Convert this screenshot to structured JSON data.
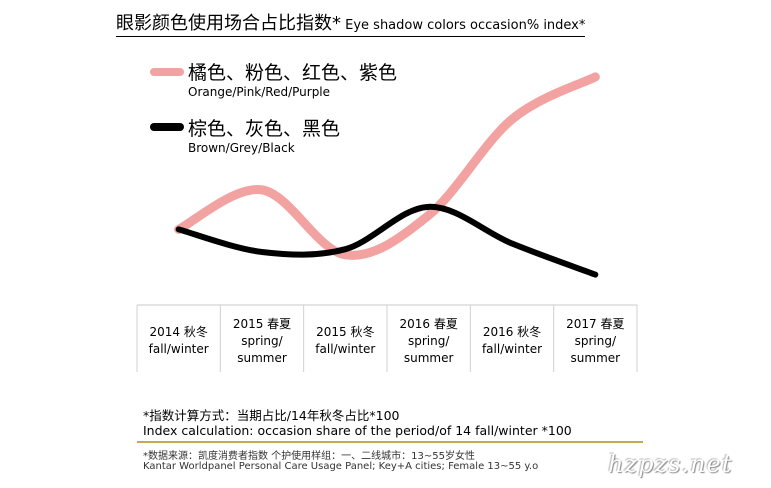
{
  "header": {
    "title_zh": "眼影颜色使用场合占比指数*",
    "title_en": " Eye shadow colors occasion% index*"
  },
  "legend": [
    {
      "label_zh": "橘色、粉色、红色、紫色",
      "label_en": "Orange/Pink/Red/Purple",
      "color": "#f3a2a2"
    },
    {
      "label_zh": "棕色、灰色、黑色",
      "label_en": "Brown/Grey/Black",
      "color": "#000000"
    }
  ],
  "chart_data": {
    "type": "line",
    "categories": [
      [
        "2014 秋冬",
        "fall/winter"
      ],
      [
        "2015 春夏",
        "spring/",
        "summer"
      ],
      [
        "2015 秋冬",
        "fall/winter"
      ],
      [
        "2016 春夏",
        "spring/",
        "summer"
      ],
      [
        "2016 秋冬",
        "fall/winter"
      ],
      [
        "2017 春夏",
        "spring/",
        "summer"
      ]
    ],
    "series": [
      {
        "name": "橘色、粉色、红色、紫色 Orange/Pink/Red/Purple",
        "color": "#f3a2a2",
        "values": [
          100,
          114,
          91,
          105,
          139,
          154
        ]
      },
      {
        "name": "棕色、灰色、黑色 Brown/Grey/Black",
        "color": "#000000",
        "values": [
          100,
          92,
          93,
          108,
          95,
          84
        ]
      }
    ],
    "ylim": [
      75,
      160
    ],
    "grid": false,
    "legend_position": "top-left"
  },
  "notes": {
    "index_calc_zh": "*指数计算方式：当期占比/14年秋冬占比*100",
    "index_calc_en": "Index calculation: occasion share of the period/of 14 fall/winter *100"
  },
  "source": {
    "zh": "*数据来源：凯度消费者指数 个护使用样组：一、二线城市：13~55岁女性",
    "en": "Kantar Worldpanel Personal Care Usage Panel; Key+A cities; Female 13~55 y.o"
  },
  "watermark": "hzpzs.net"
}
